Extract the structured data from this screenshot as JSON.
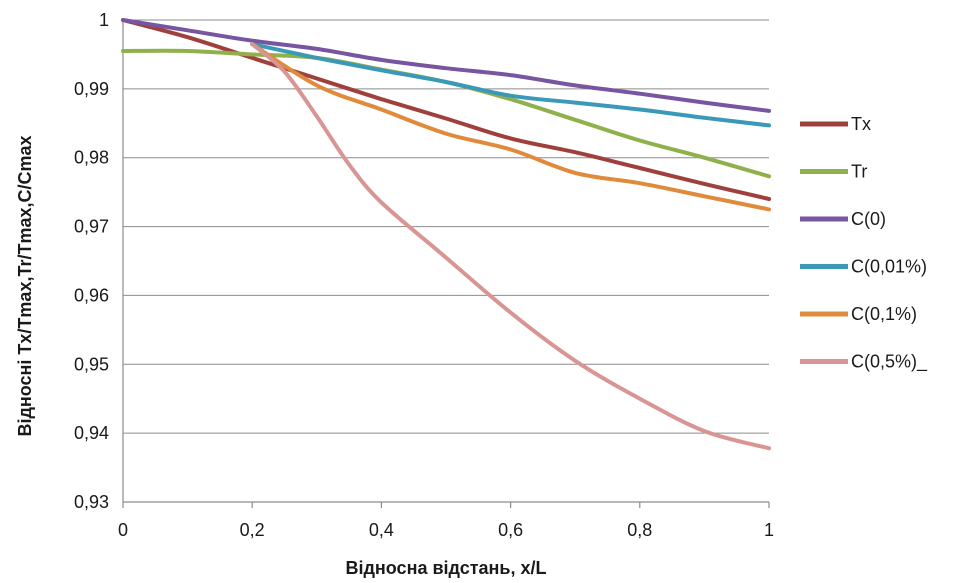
{
  "chart_data": {
    "type": "line",
    "xlabel": "Відносна відстань, x/L",
    "ylabel": "Відносні Tx/Tmax,Tr/Tmax,C/Cmax",
    "xlim": [
      0,
      1
    ],
    "ylim": [
      0.93,
      1
    ],
    "x_ticks": [
      "0",
      "0,2",
      "0,4",
      "0,6",
      "0,8",
      "1"
    ],
    "x_tick_values": [
      0,
      0.2,
      0.4,
      0.6,
      0.8,
      1
    ],
    "y_ticks": [
      "0,93",
      "0,94",
      "0,95",
      "0,96",
      "0,97",
      "0,98",
      "0,99",
      "1"
    ],
    "y_tick_values": [
      0.93,
      0.94,
      0.95,
      0.96,
      0.97,
      0.98,
      0.99,
      1
    ],
    "grid": "horizontal",
    "legend_position": "right",
    "series": [
      {
        "name": "Tx",
        "color": "#a0403d",
        "x": [
          0,
          0.1,
          0.2,
          0.3,
          0.4,
          0.5,
          0.6,
          0.7,
          0.8,
          0.9,
          1.0
        ],
        "values": [
          1.0,
          0.9975,
          0.9945,
          0.9915,
          0.9885,
          0.9857,
          0.9828,
          0.9808,
          0.9785,
          0.9762,
          0.974
        ]
      },
      {
        "name": "Tr",
        "color": "#8fb04a",
        "x": [
          0,
          0.1,
          0.2,
          0.3,
          0.4,
          0.5,
          0.6,
          0.7,
          0.8,
          0.9,
          1.0
        ],
        "values": [
          0.9955,
          0.9955,
          0.995,
          0.9945,
          0.9928,
          0.991,
          0.9885,
          0.9855,
          0.9825,
          0.98,
          0.9773
        ]
      },
      {
        "name": "C(0)",
        "color": "#7755a0",
        "x": [
          0,
          0.1,
          0.2,
          0.3,
          0.4,
          0.5,
          0.6,
          0.7,
          0.8,
          0.9,
          1.0
        ],
        "values": [
          1.0,
          0.9985,
          0.997,
          0.9958,
          0.9942,
          0.993,
          0.992,
          0.9905,
          0.9893,
          0.988,
          0.9868
        ]
      },
      {
        "name": "C(0,01%)",
        "color": "#3a98b8",
        "x": [
          0.2,
          0.3,
          0.4,
          0.5,
          0.6,
          0.7,
          0.8,
          0.9,
          1.0
        ],
        "values": [
          0.9965,
          0.9945,
          0.9927,
          0.991,
          0.989,
          0.988,
          0.987,
          0.9858,
          0.9847
        ]
      },
      {
        "name": "C(0,1%)",
        "color": "#e08a3c",
        "x": [
          0.2,
          0.3,
          0.4,
          0.5,
          0.6,
          0.7,
          0.8,
          0.9,
          1.0
        ],
        "values": [
          0.9965,
          0.9905,
          0.987,
          0.9835,
          0.9812,
          0.9778,
          0.9763,
          0.9744,
          0.9725
        ]
      },
      {
        "name": "C(0,5%)_",
        "color": "#d99593",
        "x": [
          0.2,
          0.25,
          0.3,
          0.35,
          0.4,
          0.5,
          0.6,
          0.7,
          0.8,
          0.9,
          1.0
        ],
        "values": [
          0.9965,
          0.9925,
          0.986,
          0.979,
          0.9735,
          0.9655,
          0.9575,
          0.9505,
          0.945,
          0.9403,
          0.9378
        ]
      }
    ]
  }
}
